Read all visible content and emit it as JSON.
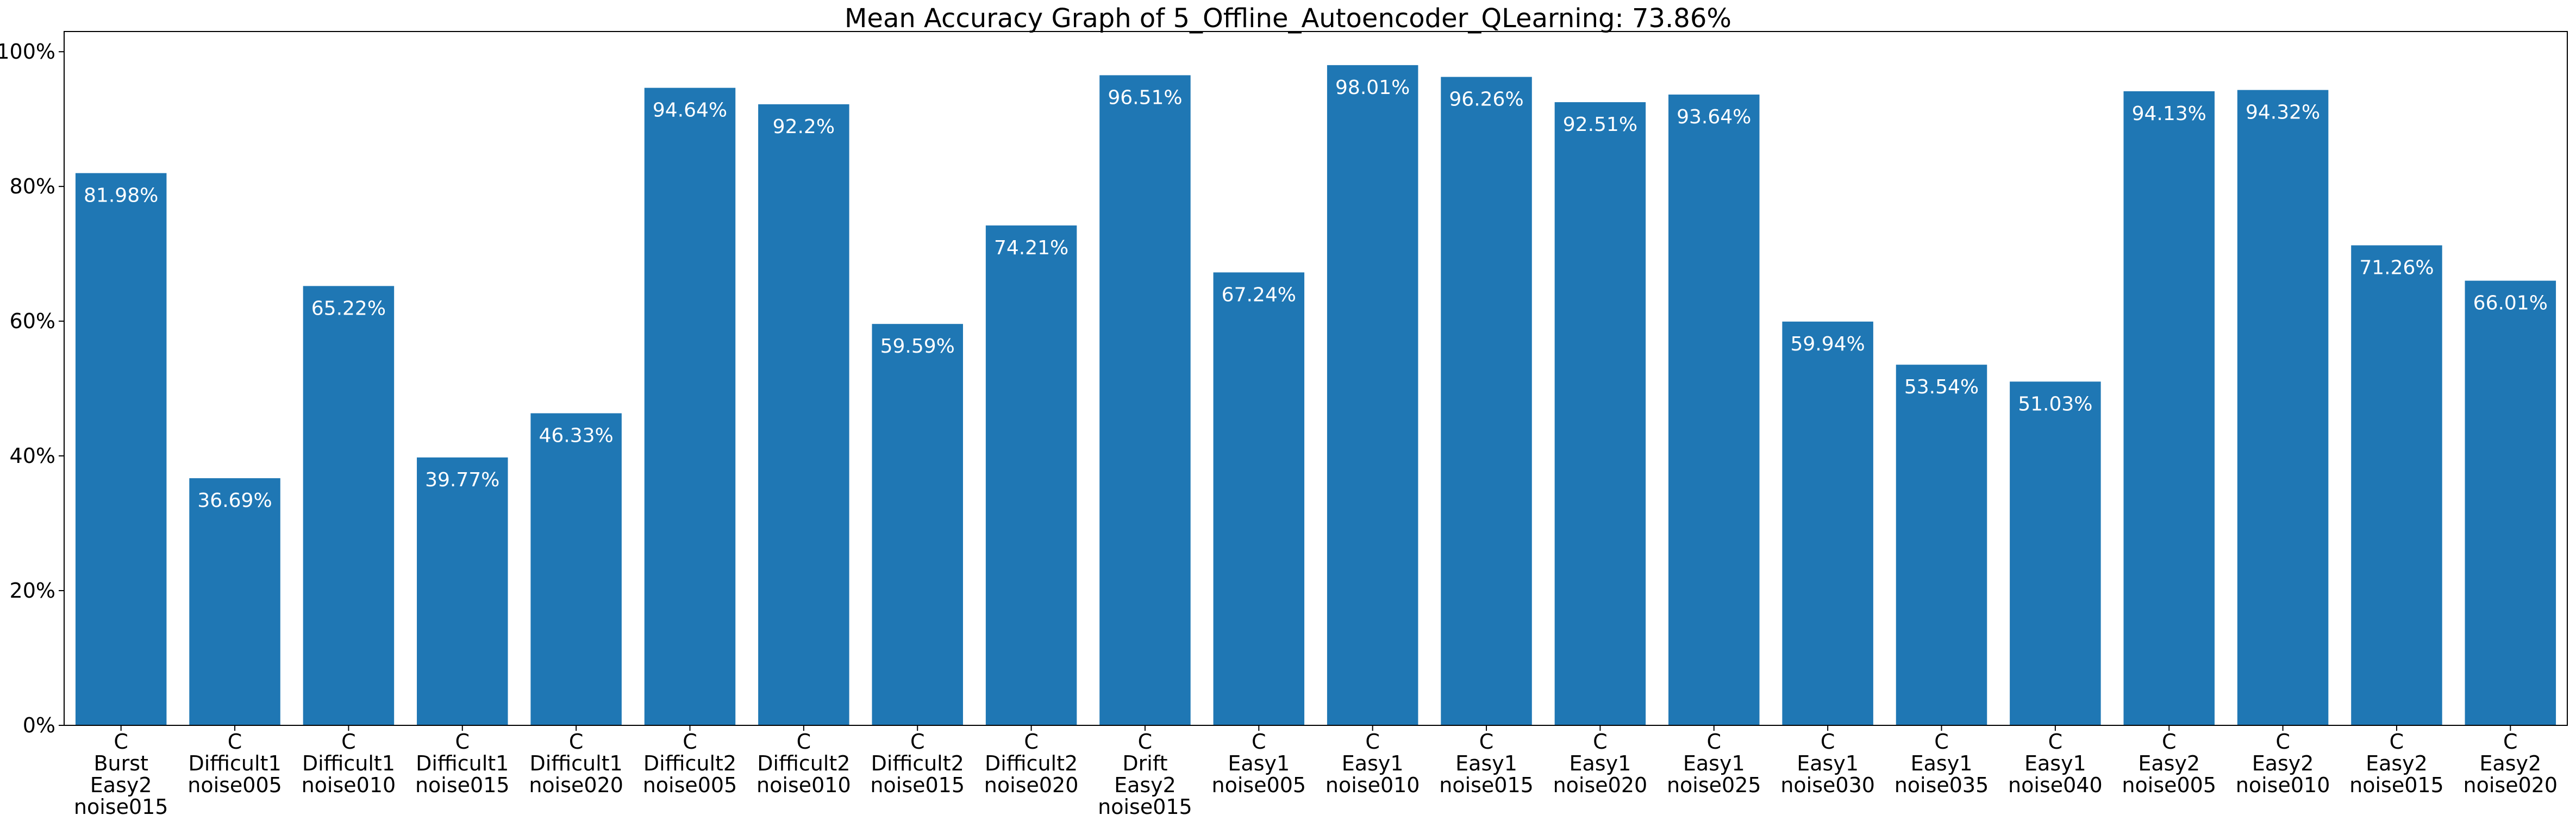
{
  "chart_data": {
    "type": "bar",
    "title": "Mean Accuracy Graph of 5_Offline_Autoencoder_QLearning: 73.86%",
    "xlabel": "",
    "ylabel": "",
    "ylim": [
      0,
      103
    ],
    "yticks": [
      0,
      20,
      40,
      60,
      80,
      100
    ],
    "ytick_labels": [
      "0%",
      "20%",
      "40%",
      "60%",
      "80%",
      "100%"
    ],
    "grid": false,
    "bar_color": "#1f77b4",
    "categories": [
      [
        "C",
        "Burst",
        "Easy2",
        "noise015"
      ],
      [
        "C",
        "Difficult1",
        "noise005"
      ],
      [
        "C",
        "Difficult1",
        "noise010"
      ],
      [
        "C",
        "Difficult1",
        "noise015"
      ],
      [
        "C",
        "Difficult1",
        "noise020"
      ],
      [
        "C",
        "Difficult2",
        "noise005"
      ],
      [
        "C",
        "Difficult2",
        "noise010"
      ],
      [
        "C",
        "Difficult2",
        "noise015"
      ],
      [
        "C",
        "Difficult2",
        "noise020"
      ],
      [
        "C",
        "Drift",
        "Easy2",
        "noise015"
      ],
      [
        "C",
        "Easy1",
        "noise005"
      ],
      [
        "C",
        "Easy1",
        "noise010"
      ],
      [
        "C",
        "Easy1",
        "noise015"
      ],
      [
        "C",
        "Easy1",
        "noise020"
      ],
      [
        "C",
        "Easy1",
        "noise025"
      ],
      [
        "C",
        "Easy1",
        "noise030"
      ],
      [
        "C",
        "Easy1",
        "noise035"
      ],
      [
        "C",
        "Easy1",
        "noise040"
      ],
      [
        "C",
        "Easy2",
        "noise005"
      ],
      [
        "C",
        "Easy2",
        "noise010"
      ],
      [
        "C",
        "Easy2",
        "noise015"
      ],
      [
        "C",
        "Easy2",
        "noise020"
      ]
    ],
    "values": [
      81.98,
      36.69,
      65.22,
      39.77,
      46.33,
      94.64,
      92.2,
      59.59,
      74.21,
      96.51,
      67.24,
      98.01,
      96.26,
      92.51,
      93.64,
      59.94,
      53.54,
      51.03,
      94.13,
      94.32,
      71.26,
      66.01
    ],
    "value_labels": [
      "81.98%",
      "36.69%",
      "65.22%",
      "39.77%",
      "46.33%",
      "94.64%",
      "92.2%",
      "59.59%",
      "74.21%",
      "96.51%",
      "67.24%",
      "98.01%",
      "96.26%",
      "92.51%",
      "93.64%",
      "59.94%",
      "53.54%",
      "51.03%",
      "94.13%",
      "94.32%",
      "71.26%",
      "66.01%"
    ]
  }
}
